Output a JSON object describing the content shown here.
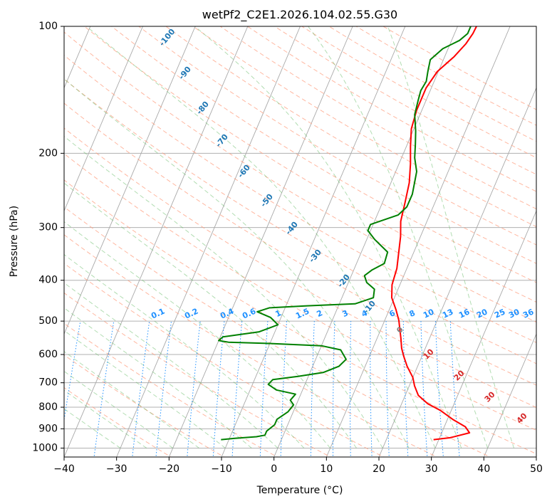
{
  "chart_data": {
    "type": "line",
    "title": "wetPf2_C2E1.2026.104.02.55.G30",
    "xlabel": "Temperature (°C)",
    "ylabel": "Pressure (hPa)",
    "xlim": [
      -40,
      50
    ],
    "ylim": [
      1050,
      100
    ],
    "y_scale": "log",
    "grid": true,
    "x_ticks": [
      -40,
      -30,
      -20,
      -10,
      0,
      10,
      20,
      30,
      40,
      50
    ],
    "y_ticks": [
      100,
      200,
      300,
      400,
      500,
      600,
      700,
      800,
      900,
      1000
    ],
    "series": [
      {
        "color": "#ff0000",
        "points": [
          [
            29,
            955
          ],
          [
            32,
            945
          ],
          [
            35.3,
            920
          ],
          [
            34,
            890
          ],
          [
            31,
            855
          ],
          [
            28,
            815
          ],
          [
            25,
            785
          ],
          [
            22.5,
            750
          ],
          [
            21,
            712
          ],
          [
            20,
            680
          ],
          [
            18,
            640
          ],
          [
            16.5,
            605
          ],
          [
            15.5,
            580
          ],
          [
            14.5,
            548
          ],
          [
            13.5,
            520
          ],
          [
            12.7,
            498
          ],
          [
            11.3,
            470
          ],
          [
            9.5,
            440
          ],
          [
            8.5,
            410
          ],
          [
            8.1,
            375
          ],
          [
            7.2,
            345
          ],
          [
            6.2,
            315
          ],
          [
            5,
            290
          ],
          [
            4.3,
            262
          ],
          [
            3.5,
            235
          ],
          [
            2.2,
            212
          ],
          [
            0.8,
            193
          ],
          [
            -0.5,
            175
          ],
          [
            -1,
            158
          ],
          [
            -1,
            140
          ],
          [
            -0.2,
            128
          ],
          [
            1.8,
            118
          ],
          [
            3,
            110
          ],
          [
            3.5,
            104
          ],
          [
            3.6,
            100
          ]
        ]
      },
      {
        "color": "#008000",
        "points": [
          [
            -11.5,
            955
          ],
          [
            -9,
            948
          ],
          [
            -5,
            940
          ],
          [
            -3.5,
            932
          ],
          [
            -3.5,
            912
          ],
          [
            -2.5,
            880
          ],
          [
            -2.5,
            855
          ],
          [
            -1,
            820
          ],
          [
            -0.5,
            790
          ],
          [
            -1.5,
            770
          ],
          [
            -1,
            745
          ],
          [
            -5,
            728
          ],
          [
            -7,
            706
          ],
          [
            -6.5,
            688
          ],
          [
            -2,
            676
          ],
          [
            2.5,
            662
          ],
          [
            5,
            640
          ],
          [
            5.8,
            616
          ],
          [
            4,
            585
          ],
          [
            0,
            572
          ],
          [
            -10,
            565
          ],
          [
            -18,
            561
          ],
          [
            -20,
            556
          ],
          [
            -19.5,
            545
          ],
          [
            -13,
            530
          ],
          [
            -10,
            510
          ],
          [
            -12,
            490
          ],
          [
            -15,
            475
          ],
          [
            -13,
            465
          ],
          [
            -6,
            460
          ],
          [
            3,
            455
          ],
          [
            6,
            440
          ],
          [
            5.5,
            420
          ],
          [
            3.5,
            405
          ],
          [
            2.5,
            390
          ],
          [
            3.5,
            378
          ],
          [
            5.3,
            365
          ],
          [
            5,
            343
          ],
          [
            1.5,
            320
          ],
          [
            -0.5,
            305
          ],
          [
            -0.5,
            295
          ],
          [
            4,
            280
          ],
          [
            5,
            268
          ],
          [
            5,
            250
          ],
          [
            4.5,
            235
          ],
          [
            4,
            221
          ],
          [
            2.5,
            205
          ],
          [
            1.5,
            190
          ],
          [
            0.5,
            177
          ],
          [
            -1,
            162
          ],
          [
            -1.5,
            150
          ],
          [
            -1.8,
            142
          ],
          [
            -1.5,
            135
          ],
          [
            -2,
            128
          ],
          [
            -2.5,
            120
          ],
          [
            -1,
            113
          ],
          [
            1.5,
            108
          ],
          [
            2.5,
            104
          ],
          [
            2.5,
            100
          ]
        ]
      }
    ],
    "dry_adiabat_labels": [
      "-100",
      "-90",
      "-80",
      "-70",
      "-60",
      "-50",
      "-40",
      "-30",
      "-20",
      "-10"
    ],
    "mixing_ratio_labels": [
      "0.1",
      "0.2",
      "0.4",
      "0.6",
      "1",
      "1.5",
      "2",
      "3",
      "4",
      "6",
      "8",
      "10",
      "13",
      "16",
      "20",
      "25",
      "30",
      "36"
    ],
    "moist_adiabat_labels": [
      "0",
      "10",
      "20",
      "30",
      "40"
    ],
    "colors": {
      "temperature": "#ff0000",
      "dewpoint": "#008000",
      "dry_adiabat_label": "#1f77b4",
      "mixing_ratio_label": "#1e90ff",
      "moist_adiabat_label": "#d62728",
      "freezing_label": "#808080"
    }
  }
}
